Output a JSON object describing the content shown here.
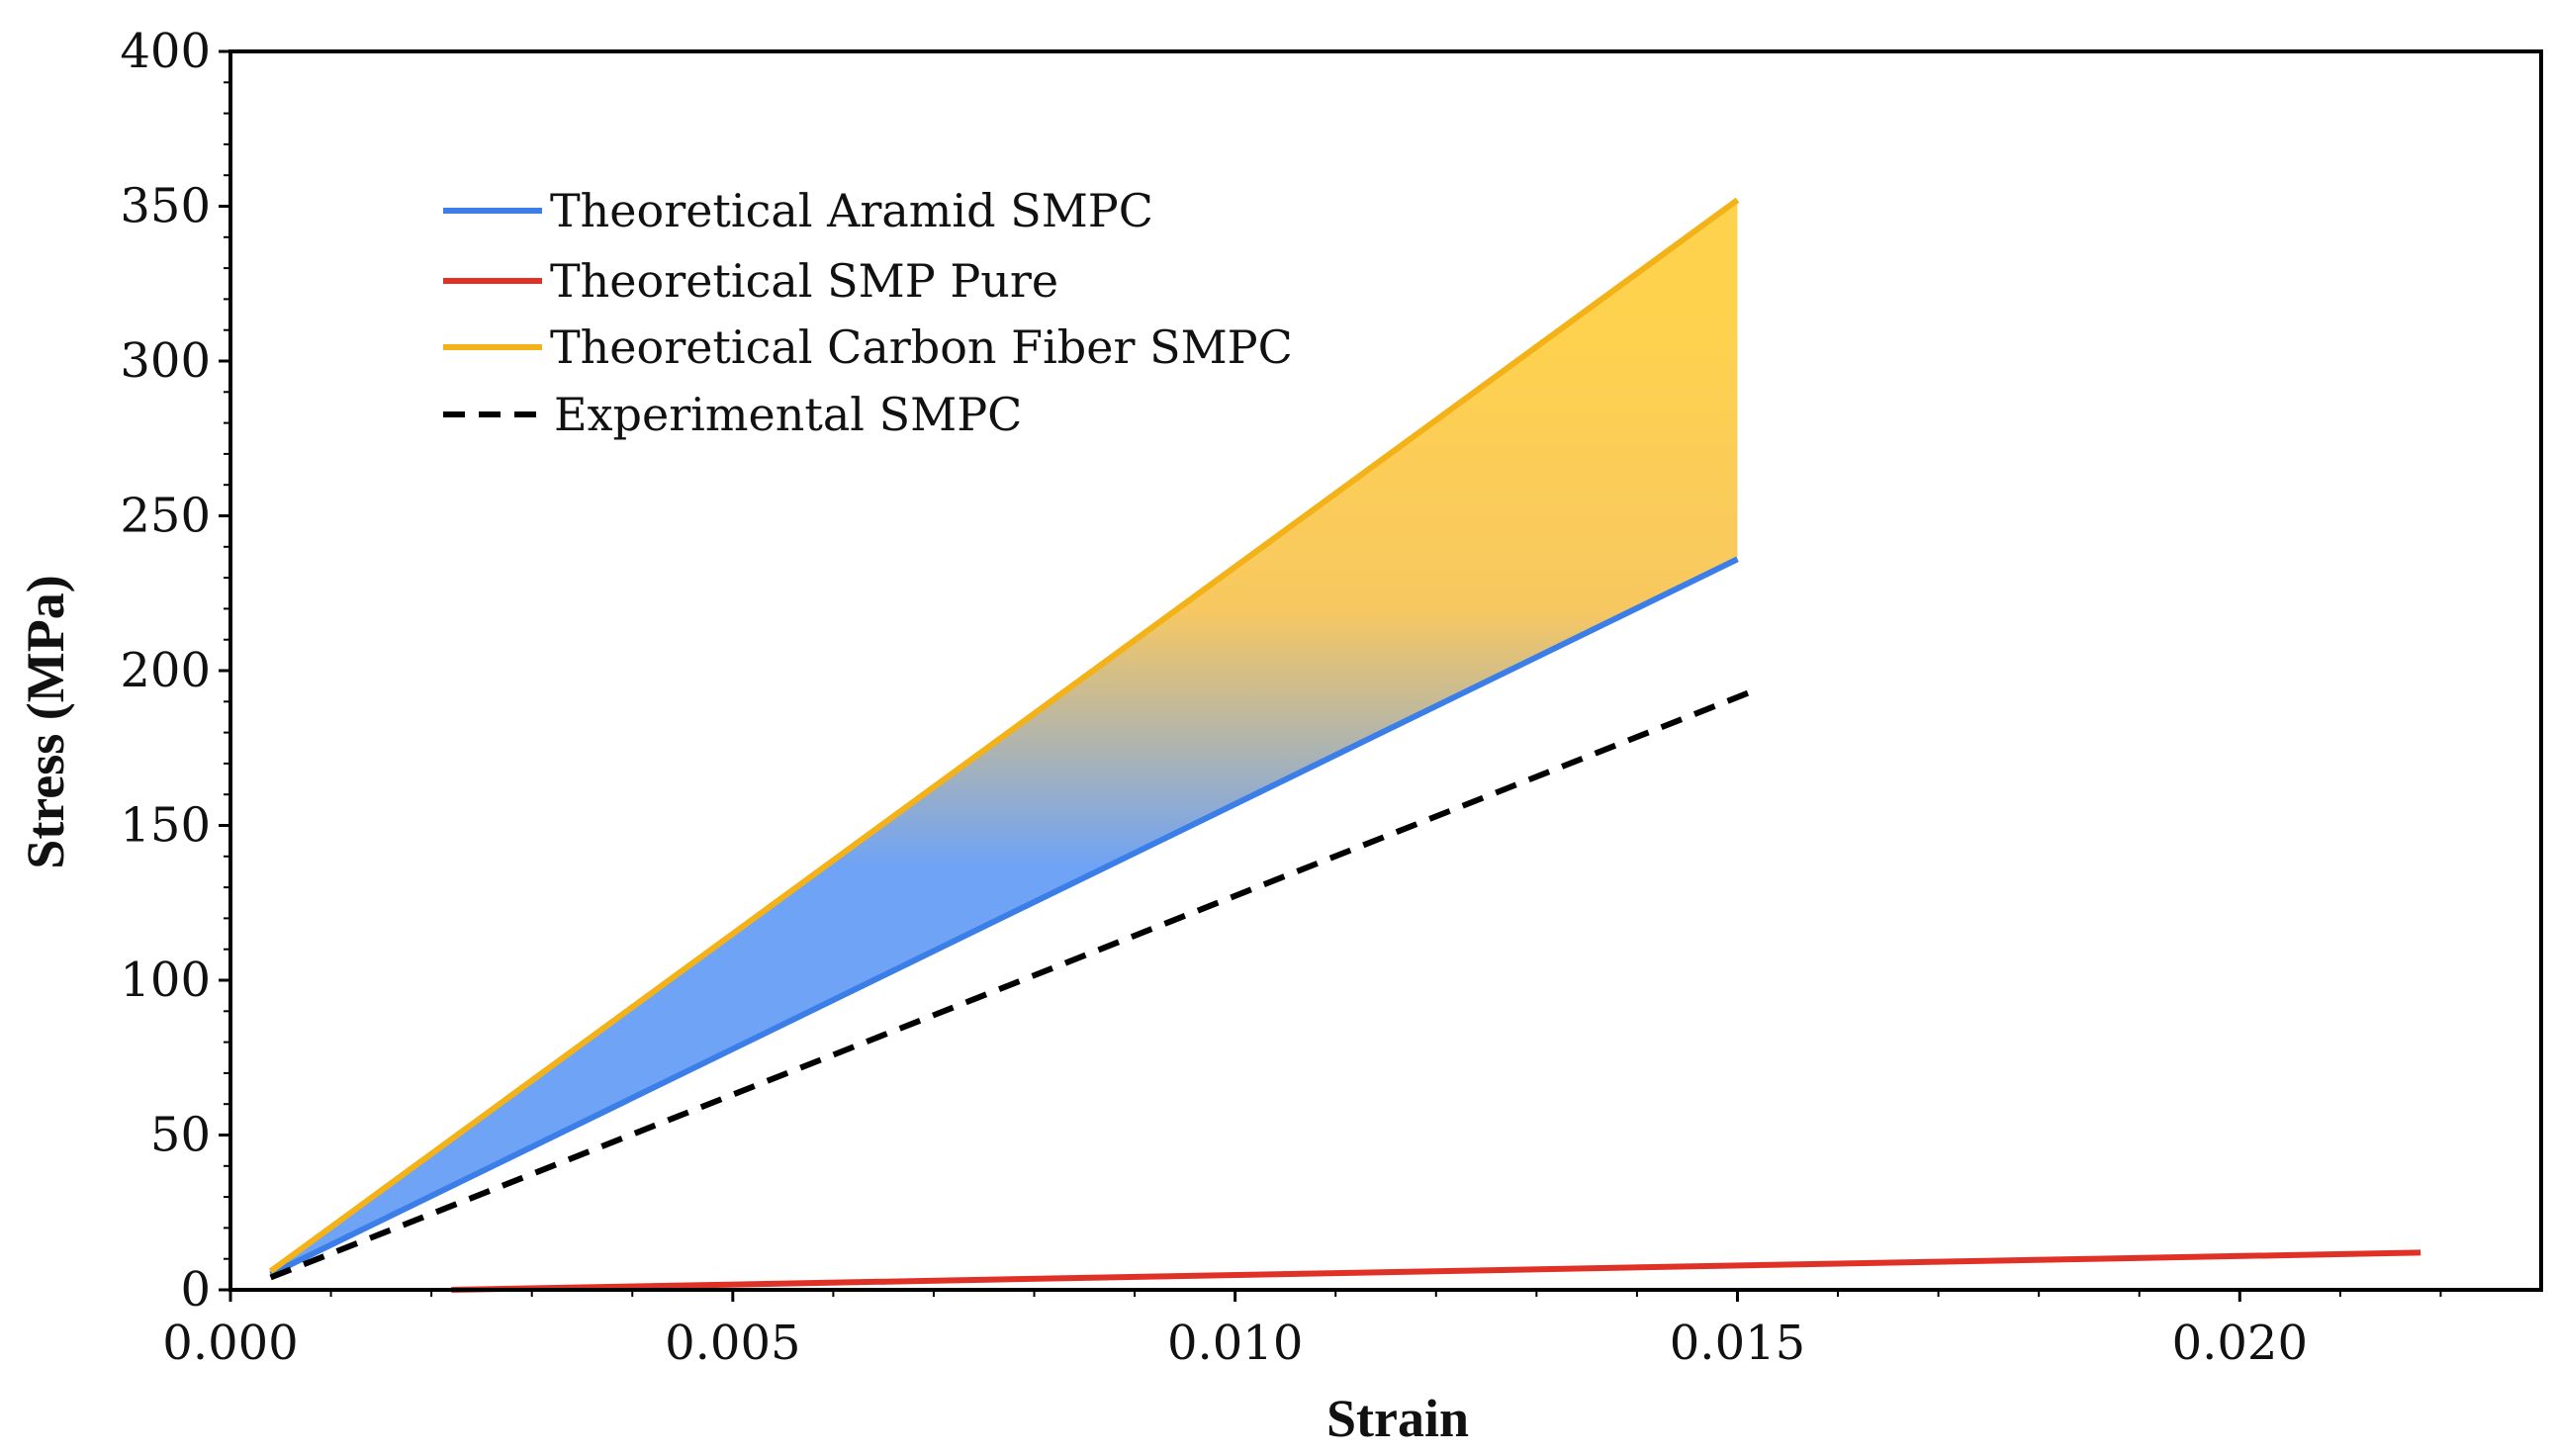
{
  "chart_data": {
    "type": "line",
    "title": "",
    "xlabel": "Strain",
    "ylabel": "Stress (MPa)",
    "xlim": [
      0.0,
      0.023
    ],
    "ylim": [
      0,
      400
    ],
    "grid": false,
    "legend_position": "top-left",
    "x_ticks": [
      0.0,
      0.005,
      0.01,
      0.015,
      0.02
    ],
    "x_tick_labels": [
      "0.000",
      "0.005",
      "0.010",
      "0.015",
      "0.020"
    ],
    "y_ticks": [
      0,
      50,
      100,
      150,
      200,
      250,
      300,
      350,
      400
    ],
    "y_tick_labels": [
      "0",
      "50",
      "100",
      "150",
      "200",
      "250",
      "300",
      "350",
      "400"
    ],
    "series": [
      {
        "name": "Theoretical Aramid SMPC",
        "color": "#3b7ee8",
        "style": "solid",
        "x": [
          0.0004,
          0.015
        ],
        "y": [
          5,
          236
        ]
      },
      {
        "name": "Theoretical SMP Pure",
        "color": "#e03127",
        "style": "solid",
        "x": [
          0.0022,
          0.0218
        ],
        "y": [
          0,
          12
        ]
      },
      {
        "name": "Theoretical Carbon Fiber SMPC",
        "color": "#f2b218",
        "style": "solid",
        "x": [
          0.0004,
          0.015
        ],
        "y": [
          6,
          352
        ]
      },
      {
        "name": "Experimental SMPC",
        "color": "#000000",
        "style": "dashed",
        "x": [
          0.0004,
          0.0152
        ],
        "y": [
          4,
          194
        ]
      }
    ],
    "shaded_band": {
      "between": [
        "Theoretical Aramid SMPC",
        "Theoretical Carbon Fiber SMPC"
      ],
      "top_color": "#ffd24d",
      "bottom_color": "#6fa3f5"
    }
  }
}
